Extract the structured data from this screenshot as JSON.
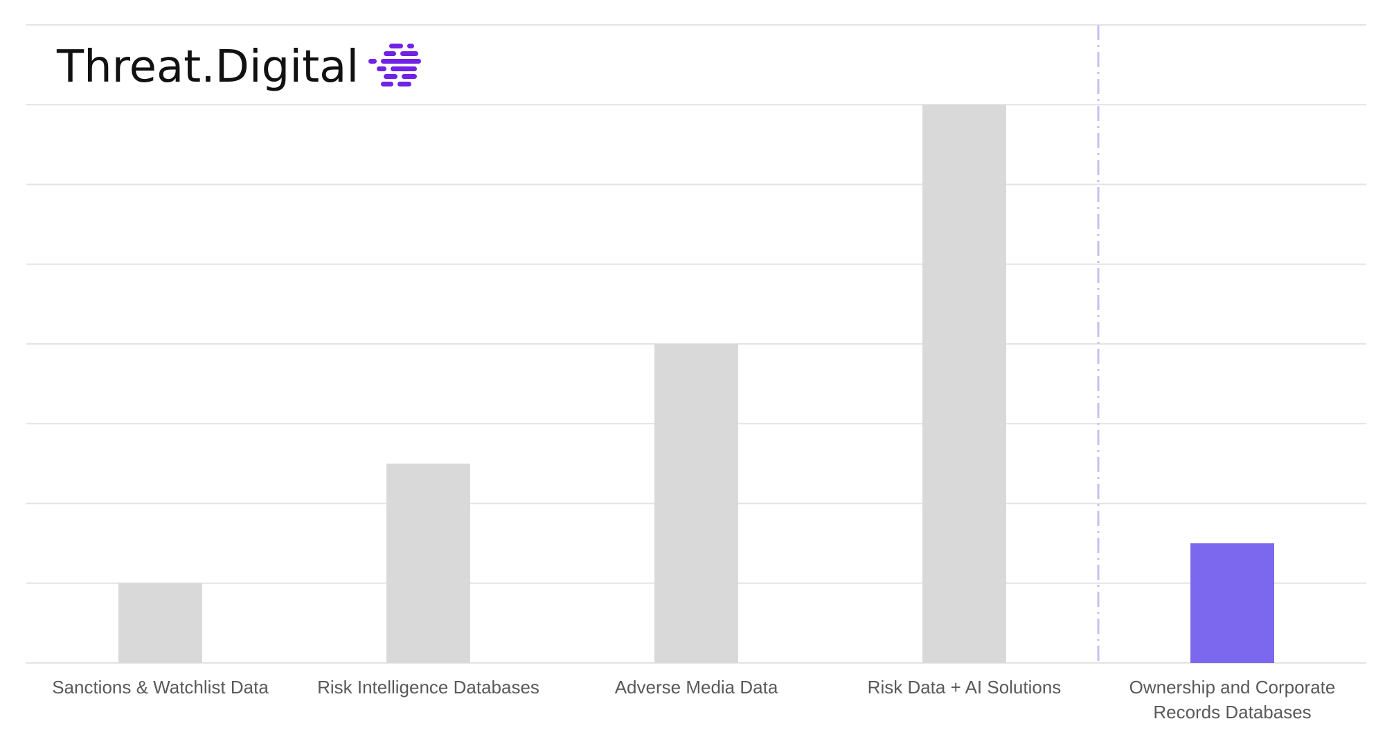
{
  "brand": {
    "name": "Threat.Digital",
    "icon": "stacked-lines-logo-icon",
    "icon_color": "#7122e6"
  },
  "chart_data": {
    "type": "bar",
    "categories": [
      [
        "Sanctions & Watchlist Data"
      ],
      [
        "Risk Intelligence Databases"
      ],
      [
        "Adverse Media Data"
      ],
      [
        "Risk Data + AI Solutions"
      ],
      [
        "Ownership and Corporate",
        "Records Databases"
      ]
    ],
    "values": [
      1,
      2.5,
      4,
      7,
      1.5
    ],
    "ylim": [
      0,
      8
    ],
    "y_gridlines": [
      0,
      1,
      2,
      3,
      4,
      5,
      6,
      7,
      8
    ],
    "grid": true,
    "y_tick_labels_shown": false,
    "bar_colors": [
      "#d9d9d9",
      "#d9d9d9",
      "#d9d9d9",
      "#d9d9d9",
      "#7b68ee"
    ],
    "gridline_color": "#e3e3e3",
    "separator": {
      "after_category_index": 3,
      "style": "dash-dot",
      "color": "#c9bff0"
    }
  }
}
